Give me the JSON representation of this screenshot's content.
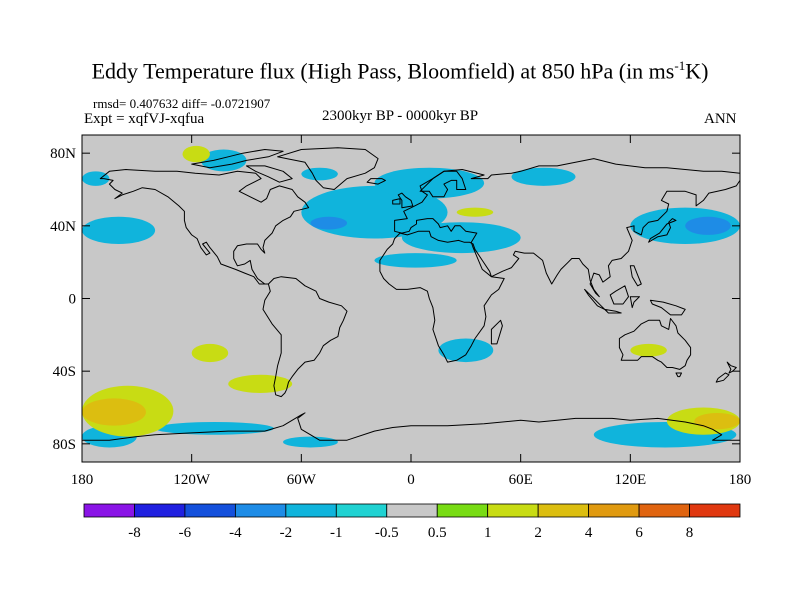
{
  "figure": {
    "title_main": "Eddy Temperature flux (High Pass, Bloomfield) at 850 hPa (in ms",
    "title_sup": "-1",
    "title_end": "K)",
    "stats": "rmsd= 0.407632 diff= -0.0721907",
    "experiment": "Expt = xqfVJ-xqfua",
    "period": "2300kyr BP - 0000kyr BP",
    "season": "ANN"
  },
  "map": {
    "lon_range": [
      -180,
      180
    ],
    "lat_range": [
      -90,
      90
    ],
    "lat_ticks": [
      {
        "value": 80,
        "label": "80N"
      },
      {
        "value": 40,
        "label": "40N"
      },
      {
        "value": 0,
        "label": "0"
      },
      {
        "value": -40,
        "label": "40S"
      },
      {
        "value": -80,
        "label": "80S"
      }
    ],
    "lon_ticks": [
      {
        "value": -180,
        "label": "180"
      },
      {
        "value": -120,
        "label": "120W"
      },
      {
        "value": -60,
        "label": "60W"
      },
      {
        "value": 0,
        "label": "0"
      },
      {
        "value": 60,
        "label": "60E"
      },
      {
        "value": 120,
        "label": "120E"
      },
      {
        "value": 180,
        "label": "180"
      }
    ],
    "background_color": "#c8c8c8",
    "coast_color": "#000000"
  },
  "colorbar": {
    "colors": [
      "#8a14e6",
      "#2020e0",
      "#1450dc",
      "#1e8ce6",
      "#10b4dc",
      "#20d2d2",
      "#c8c8c8",
      "#78dc14",
      "#c8dc14",
      "#dcbe10",
      "#e09a10",
      "#e06410",
      "#e03810"
    ],
    "labels": [
      "-8",
      "-6",
      "-4",
      "-2",
      "-1",
      "-0.5",
      "0.5",
      "1",
      "2",
      "4",
      "6",
      "8"
    ]
  },
  "chart_data": {
    "type": "heatmap",
    "variable": "Eddy Temperature flux (High Pass, Bloomfield)",
    "level": "850 hPa",
    "units": "ms-1K",
    "levels": [
      -8,
      -6,
      -4,
      -2,
      -1,
      -0.5,
      0.5,
      1,
      2,
      4,
      6,
      8
    ],
    "rmsd": 0.407632,
    "diff": -0.0721907,
    "regions": [
      {
        "level": -1,
        "lon": [
          -60,
          20
        ],
        "lat": [
          33,
          62
        ]
      },
      {
        "level": -2,
        "lon": [
          -55,
          -35
        ],
        "lat": [
          38,
          45
        ]
      },
      {
        "level": -1,
        "lon": [
          -20,
          40
        ],
        "lat": [
          55,
          72
        ]
      },
      {
        "level": -1,
        "lon": [
          -5,
          60
        ],
        "lat": [
          25,
          42
        ]
      },
      {
        "level": -1,
        "lon": [
          -20,
          25
        ],
        "lat": [
          17,
          25
        ]
      },
      {
        "level": -1,
        "lon": [
          120,
          180
        ],
        "lat": [
          30,
          50
        ]
      },
      {
        "level": -2,
        "lon": [
          150,
          175
        ],
        "lat": [
          35,
          45
        ]
      },
      {
        "level": -1,
        "lon": [
          -180,
          -140
        ],
        "lat": [
          30,
          45
        ]
      },
      {
        "level": -1,
        "lon": [
          -180,
          -165
        ],
        "lat": [
          62,
          70
        ]
      },
      {
        "level": -1,
        "lon": [
          -115,
          -90
        ],
        "lat": [
          70,
          82
        ]
      },
      {
        "level": -1,
        "lon": [
          -60,
          -40
        ],
        "lat": [
          65,
          72
        ]
      },
      {
        "level": -1,
        "lon": [
          55,
          90
        ],
        "lat": [
          62,
          72
        ]
      },
      {
        "level": -1,
        "lon": [
          15,
          45
        ],
        "lat": [
          -35,
          -22
        ]
      },
      {
        "level": -1,
        "lon": [
          100,
          178
        ],
        "lat": [
          -82,
          -68
        ]
      },
      {
        "level": -1,
        "lon": [
          -180,
          -150
        ],
        "lat": [
          -82,
          -70
        ]
      },
      {
        "level": -1,
        "lon": [
          -140,
          -75
        ],
        "lat": [
          -75,
          -68
        ]
      },
      {
        "level": -1,
        "lon": [
          -70,
          -40
        ],
        "lat": [
          -82,
          -76
        ]
      },
      {
        "level": 1,
        "lon": [
          -180,
          -130
        ],
        "lat": [
          -76,
          -48
        ]
      },
      {
        "level": 2,
        "lon": [
          -180,
          -145
        ],
        "lat": [
          -70,
          -55
        ]
      },
      {
        "level": 1,
        "lon": [
          -100,
          -65
        ],
        "lat": [
          -52,
          -42
        ]
      },
      {
        "level": 1,
        "lon": [
          -120,
          -100
        ],
        "lat": [
          -35,
          -25
        ]
      },
      {
        "level": 1,
        "lon": [
          140,
          180
        ],
        "lat": [
          -75,
          -60
        ]
      },
      {
        "level": 2,
        "lon": [
          155,
          180
        ],
        "lat": [
          -72,
          -63
        ]
      },
      {
        "level": 1,
        "lon": [
          25,
          45
        ],
        "lat": [
          45,
          50
        ]
      },
      {
        "level": 1,
        "lon": [
          120,
          140
        ],
        "lat": [
          -32,
          -25
        ]
      },
      {
        "level": 1,
        "lon": [
          -125,
          -110
        ],
        "lat": [
          75,
          84
        ]
      }
    ]
  }
}
